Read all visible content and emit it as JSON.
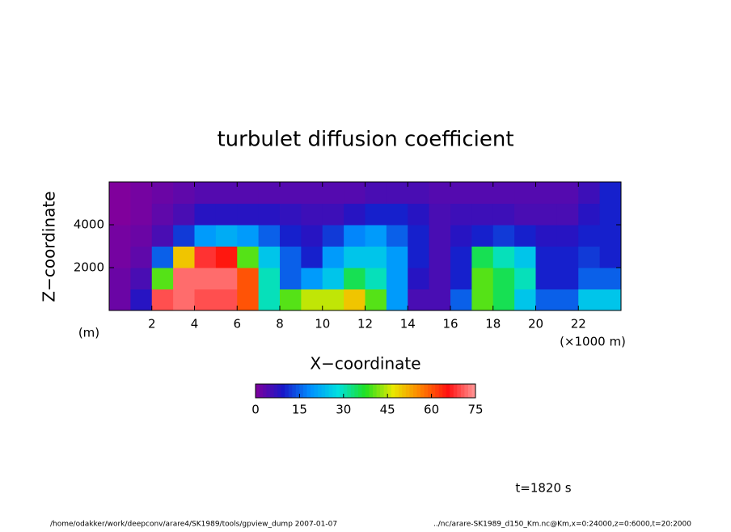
{
  "chart_data": {
    "type": "heatmap",
    "title": "turbulet diffusion coefficient",
    "x_label": "X−coordinate",
    "y_label": "Z−coordinate",
    "y_unit": "(m)",
    "x_unit": "(×1000 m)",
    "time_label": "t=1820 s",
    "footer_left": "/home/odakker/work/deepconv/arare4/SK1989/tools/gpview_dump  2007-01-07",
    "footer_right": "../nc/arare-SK1989_d150_Km.nc@Km,x=0:24000,z=0:6000,t=20:2000",
    "xlim": [
      0,
      24
    ],
    "xticks": [
      2,
      4,
      6,
      8,
      10,
      12,
      14,
      16,
      18,
      20,
      22
    ],
    "ylim": [
      0,
      6000
    ],
    "yticks": [
      2000,
      4000
    ],
    "x": [
      0.5,
      1.5,
      2.5,
      3.5,
      4.5,
      5.5,
      6.5,
      7.5,
      8.5,
      9.5,
      10.5,
      11.5,
      12.5,
      13.5,
      14.5,
      15.5,
      16.5,
      17.5,
      18.5,
      19.5,
      20.5,
      21.5,
      22.5,
      23.5
    ],
    "z": [
      500,
      1500,
      2500,
      3500,
      4500,
      5500
    ],
    "values": [
      [
        2,
        8,
        70,
        72,
        70,
        70,
        60,
        30,
        40,
        45,
        45,
        50,
        40,
        20,
        5,
        5,
        15,
        40,
        35,
        25,
        15,
        15,
        25,
        25
      ],
      [
        2,
        5,
        40,
        72,
        72,
        72,
        60,
        30,
        15,
        20,
        25,
        35,
        30,
        20,
        8,
        5,
        10,
        40,
        35,
        30,
        10,
        10,
        15,
        15
      ],
      [
        1,
        3,
        15,
        50,
        68,
        65,
        40,
        25,
        15,
        10,
        20,
        25,
        25,
        20,
        10,
        5,
        10,
        35,
        30,
        25,
        10,
        10,
        12,
        10
      ],
      [
        1,
        2,
        5,
        12,
        20,
        22,
        20,
        15,
        10,
        8,
        12,
        18,
        20,
        15,
        10,
        5,
        8,
        10,
        12,
        10,
        8,
        8,
        10,
        10
      ],
      [
        0,
        1,
        3,
        5,
        8,
        8,
        8,
        8,
        7,
        6,
        6,
        8,
        10,
        10,
        8,
        5,
        6,
        6,
        6,
        5,
        5,
        5,
        8,
        10
      ],
      [
        0,
        1,
        2,
        3,
        4,
        4,
        4,
        4,
        4,
        4,
        4,
        4,
        5,
        5,
        5,
        4,
        4,
        4,
        4,
        4,
        4,
        4,
        6,
        10
      ]
    ],
    "clim": [
      0,
      75
    ],
    "cticks": [
      0,
      15,
      30,
      45,
      60,
      75
    ],
    "colors": [
      "#80009c",
      "#1818c8",
      "#0090ff",
      "#00e0e0",
      "#20e020",
      "#e8e800",
      "#ff8000",
      "#ff1010",
      "#ff9898"
    ]
  }
}
